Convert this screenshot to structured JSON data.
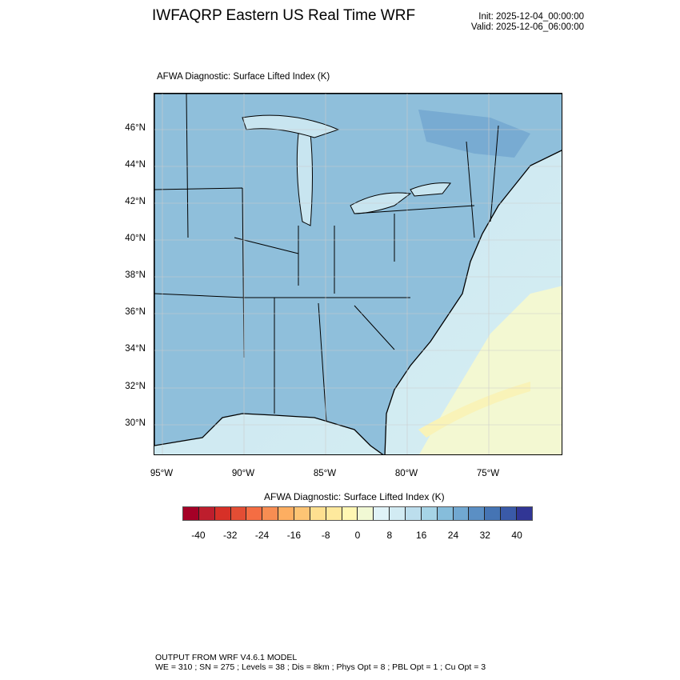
{
  "header": {
    "title": "IWFAQRP Eastern US Real Time WRF",
    "init": "Init: 2025-12-04_00:00:00",
    "valid": "Valid: 2025-12-06_06:00:00"
  },
  "map": {
    "subtitle": "AFWA Diagnostic: Surface Lifted Index   (K)",
    "lat_labels": [
      "46°N",
      "44°N",
      "42°N",
      "40°N",
      "38°N",
      "36°N",
      "34°N",
      "32°N",
      "30°N"
    ],
    "lon_labels": [
      "95°W",
      "90°W",
      "85°W",
      "80°W",
      "75°W"
    ],
    "colors": {
      "land": "#8fbfdb",
      "ocean": "#c8e5f0",
      "warm_ocean": "#f3f8d2",
      "dark": "#5f97c8"
    }
  },
  "colorbar": {
    "title": "AFWA Diagnostic: Surface Lifted Index  (K)",
    "labels": [
      "-40",
      "-32",
      "-24",
      "-16",
      "-8",
      "0",
      "8",
      "16",
      "24",
      "32",
      "40"
    ],
    "colors": [
      "#a50026",
      "#be1e2d",
      "#d73027",
      "#e34d34",
      "#f46d43",
      "#f88d52",
      "#fdae61",
      "#fdc474",
      "#fee090",
      "#fee99d",
      "#fff7b3",
      "#f1f9d4",
      "#e0f3f8",
      "#d2ebf3",
      "#bcdeed",
      "#a6d4e6",
      "#86bddb",
      "#71a8d1",
      "#5b8fc4",
      "#4574b4",
      "#3a5aa8",
      "#313695"
    ]
  },
  "footer": {
    "line1": "OUTPUT FROM WRF V4.6.1 MODEL",
    "line2": "WE = 310 ; SN = 275 ; Levels = 38 ; Dis = 8km ; Phys Opt = 8 ; PBL Opt = 1 ; Cu Opt = 3"
  }
}
